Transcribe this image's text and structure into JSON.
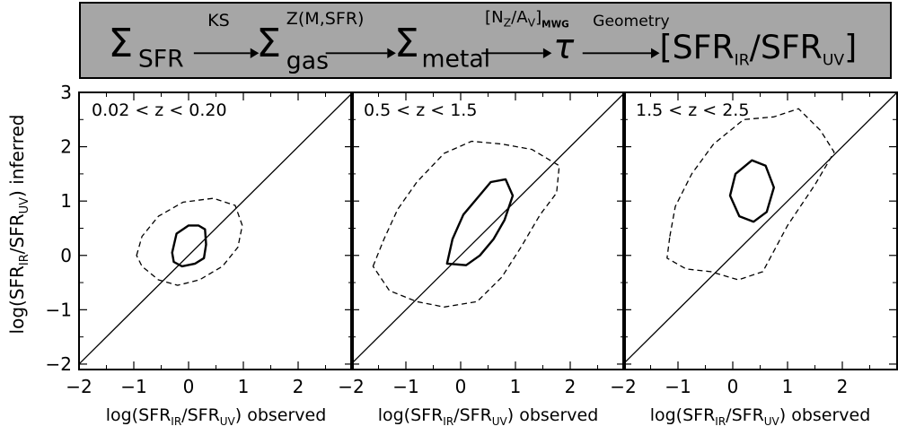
{
  "banner": {
    "chain": [
      "Σ",
      "SFR",
      "KS",
      "Σ",
      "gas",
      "Z(M,SFR)",
      "Σ",
      "metal",
      "[N",
      "Z",
      "/A",
      "V",
      "]",
      "MWG",
      "τ",
      "Geometry",
      "[SFR",
      "IR",
      "/SFR",
      "UV",
      "]"
    ]
  },
  "chart_data": [
    {
      "type": "contour",
      "panel_label": "0.02 < z < 0.20",
      "xlabel_parts": [
        "log(SFR",
        "IR",
        "/SFR",
        "UV",
        ") observed"
      ],
      "ylabel_parts": [
        "log(SFR",
        "IR",
        "/SFR",
        "UV",
        ") inferred"
      ],
      "xlim": [
        -2,
        3
      ],
      "ylim": [
        -2.1,
        3.0
      ],
      "xticks": [
        -2,
        -1,
        0,
        1,
        2
      ],
      "yticks": [
        -2,
        -1,
        0,
        1,
        2,
        3
      ],
      "one_to_one_line": true,
      "contours": [
        {
          "style": "solid",
          "points": [
            [
              -0.3,
              0.05
            ],
            [
              -0.22,
              0.4
            ],
            [
              0.0,
              0.55
            ],
            [
              0.18,
              0.55
            ],
            [
              0.3,
              0.48
            ],
            [
              0.32,
              0.2
            ],
            [
              0.28,
              -0.05
            ],
            [
              0.12,
              -0.15
            ],
            [
              -0.12,
              -0.2
            ],
            [
              -0.27,
              -0.12
            ]
          ]
        },
        {
          "style": "dashed",
          "points": [
            [
              -0.95,
              0.0
            ],
            [
              -0.85,
              0.35
            ],
            [
              -0.55,
              0.72
            ],
            [
              -0.1,
              0.98
            ],
            [
              0.45,
              1.05
            ],
            [
              0.85,
              0.92
            ],
            [
              0.98,
              0.55
            ],
            [
              0.9,
              0.15
            ],
            [
              0.62,
              -0.2
            ],
            [
              0.2,
              -0.45
            ],
            [
              -0.2,
              -0.55
            ],
            [
              -0.55,
              -0.45
            ],
            [
              -0.85,
              -0.2
            ]
          ]
        }
      ]
    },
    {
      "type": "contour",
      "panel_label": "0.5 < z < 1.5",
      "xlabel_parts": [
        "log(SFR",
        "IR",
        "/SFR",
        "UV",
        ") observed"
      ],
      "xlim": [
        -2,
        3
      ],
      "ylim": [
        -2.1,
        3.0
      ],
      "xticks": [
        -2,
        -1,
        0,
        1,
        2
      ],
      "yticks": [
        -2,
        -1,
        0,
        1,
        2,
        3
      ],
      "one_to_one_line": true,
      "contours": [
        {
          "style": "solid",
          "points": [
            [
              -0.25,
              -0.15
            ],
            [
              -0.15,
              0.3
            ],
            [
              0.05,
              0.75
            ],
            [
              0.3,
              1.05
            ],
            [
              0.55,
              1.35
            ],
            [
              0.82,
              1.4
            ],
            [
              0.95,
              1.1
            ],
            [
              0.8,
              0.65
            ],
            [
              0.6,
              0.3
            ],
            [
              0.35,
              0.0
            ],
            [
              0.1,
              -0.18
            ]
          ]
        },
        {
          "style": "dashed",
          "points": [
            [
              -1.6,
              -0.2
            ],
            [
              -1.4,
              0.3
            ],
            [
              -1.15,
              0.85
            ],
            [
              -0.8,
              1.35
            ],
            [
              -0.3,
              1.88
            ],
            [
              0.2,
              2.1
            ],
            [
              0.75,
              2.05
            ],
            [
              1.3,
              1.95
            ],
            [
              1.8,
              1.65
            ],
            [
              1.75,
              1.15
            ],
            [
              1.45,
              0.75
            ],
            [
              1.1,
              0.15
            ],
            [
              0.75,
              -0.4
            ],
            [
              0.3,
              -0.85
            ],
            [
              -0.3,
              -0.95
            ],
            [
              -0.8,
              -0.85
            ],
            [
              -1.3,
              -0.65
            ]
          ]
        }
      ]
    },
    {
      "type": "contour",
      "panel_label": "1.5 < z < 2.5",
      "xlabel_parts": [
        "log(SFR",
        "IR",
        "/SFR",
        "UV",
        ") observed"
      ],
      "xlim": [
        -2,
        3
      ],
      "ylim": [
        -2.1,
        3.0
      ],
      "xticks": [
        -2,
        -1,
        0,
        1,
        2
      ],
      "yticks": [
        -2,
        -1,
        0,
        1,
        2,
        3
      ],
      "one_to_one_line": true,
      "contours": [
        {
          "style": "solid",
          "points": [
            [
              -0.05,
              1.1
            ],
            [
              0.05,
              1.5
            ],
            [
              0.35,
              1.75
            ],
            [
              0.6,
              1.65
            ],
            [
              0.75,
              1.25
            ],
            [
              0.62,
              0.8
            ],
            [
              0.38,
              0.62
            ],
            [
              0.12,
              0.72
            ]
          ]
        },
        {
          "style": "dashed",
          "points": [
            [
              -1.15,
              0.35
            ],
            [
              -1.05,
              0.9
            ],
            [
              -0.75,
              1.5
            ],
            [
              -0.35,
              2.05
            ],
            [
              0.2,
              2.5
            ],
            [
              0.75,
              2.55
            ],
            [
              1.2,
              2.7
            ],
            [
              1.6,
              2.3
            ],
            [
              1.85,
              1.9
            ],
            [
              1.5,
              1.3
            ],
            [
              1.0,
              0.55
            ],
            [
              0.55,
              -0.3
            ],
            [
              0.1,
              -0.45
            ],
            [
              -0.4,
              -0.3
            ],
            [
              -0.85,
              -0.25
            ],
            [
              -1.2,
              -0.05
            ]
          ]
        }
      ]
    }
  ]
}
